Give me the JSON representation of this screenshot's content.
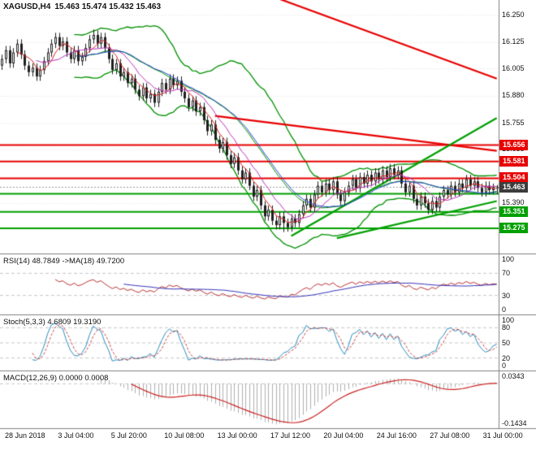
{
  "title": {
    "symbol": "XAGUSD,H4",
    "ohlc": "15.463 15.474 15.432 15.463"
  },
  "colors": {
    "background": "#ffffff",
    "bull": "#ffffff",
    "bear": "#1f1f1f",
    "outline": "#1f1f1f",
    "bollinger": "#009100",
    "ma_fast": "#dd2222",
    "ma_mid": "#bb33bb",
    "ma_slow": "#2244cc",
    "resistance": "#e80000",
    "support": "#00a000",
    "current_line": "#999999",
    "current_badge": "#3c3c3c",
    "rsi": "#bb3333",
    "rsi_ma": "#3333bb",
    "stoch_k": "#2b8fbf",
    "stoch_d": "#cc4444",
    "macd_hist": "#b0b0b0",
    "macd_signal": "#cc2222",
    "grid": "#e3e3e3",
    "frame": "#7f7f7f",
    "level_dash": "#c8c8c8",
    "text": "#111111"
  },
  "price_axis": {
    "ticks": [
      {
        "label": "16.250",
        "value": 16.25
      },
      {
        "label": "16.125",
        "value": 16.125
      },
      {
        "label": "16.005",
        "value": 16.005
      },
      {
        "label": "15.880",
        "value": 15.88
      },
      {
        "label": "15.755",
        "value": 15.755
      },
      {
        "label": "15.635",
        "value": 15.635
      },
      {
        "label": "15.390",
        "value": 15.39
      }
    ],
    "badges": [
      {
        "label": "15.656",
        "value": 15.656,
        "role": "resistance"
      },
      {
        "label": "15.581",
        "value": 15.581,
        "role": "resistance"
      },
      {
        "label": "15.504",
        "value": 15.504,
        "role": "resistance"
      },
      {
        "label": "15.463",
        "value": 15.463,
        "role": "current"
      },
      {
        "label": "15.351",
        "value": 15.351,
        "role": "support"
      },
      {
        "label": "15.275",
        "value": 15.275,
        "role": "support"
      }
    ]
  },
  "indicator_panels": {
    "rsi": {
      "title": "RSI(14) 48.7849 ->MA(18) 49.7200",
      "axis": [
        {
          "label": "100",
          "value": 100
        },
        {
          "label": "70",
          "value": 70
        },
        {
          "label": "30",
          "value": 30
        },
        {
          "label": "0",
          "value": 0
        }
      ],
      "levels": [
        70,
        30
      ]
    },
    "stoch": {
      "title": "Stoch(5,3,3) 4.6809 19.3190",
      "axis": [
        {
          "label": "100",
          "value": 100
        },
        {
          "label": "80",
          "value": 80
        },
        {
          "label": "50",
          "value": 50
        },
        {
          "label": "20",
          "value": 20
        },
        {
          "label": "0",
          "value": 0
        }
      ],
      "levels": [
        80,
        50,
        20
      ]
    },
    "macd": {
      "title": "MACD(12,26,9) 0.0000 0.0008",
      "axis": [
        {
          "label": "0.0343",
          "value": 0.0343
        },
        {
          "label": "-0.1434",
          "value": -0.1434
        }
      ],
      "range": [
        -0.1434,
        0.0343
      ]
    }
  },
  "time_axis": {
    "labels": [
      "28 Jun 2018",
      "3 Jul 04:00",
      "5 Jul 20:00",
      "10 Jul 08:00",
      "13 Jul 00:00",
      "17 Jul 12:00",
      "20 Jul 04:00",
      "24 Jul 16:00",
      "27 Jul 08:00",
      "31 Jul 00:00"
    ]
  },
  "chart_data": {
    "type": "candlestick",
    "symbol": "XAGUSD",
    "timeframe": "H4",
    "title": "XAGUSD,H4 15.463 15.474 15.432 15.463",
    "ylim": [
      15.16,
      16.32
    ],
    "x_labels": [
      "28 Jun 2018",
      "3 Jul 04:00",
      "5 Jul 20:00",
      "10 Jul 08:00",
      "13 Jul 00:00",
      "17 Jul 12:00",
      "20 Jul 04:00",
      "24 Jul 16:00",
      "27 Jul 08:00",
      "31 Jul 00:00"
    ],
    "candles": [
      [
        16.02,
        16.07,
        16.0,
        16.05
      ],
      [
        16.05,
        16.11,
        16.03,
        16.09
      ],
      [
        16.09,
        16.11,
        16.01,
        16.03
      ],
      [
        16.03,
        16.1,
        16.01,
        16.08
      ],
      [
        16.08,
        16.14,
        16.06,
        16.12
      ],
      [
        16.12,
        16.14,
        16.05,
        16.07
      ],
      [
        16.07,
        16.09,
        16.0,
        16.02
      ],
      [
        16.02,
        16.04,
        15.97,
        15.99
      ],
      [
        15.99,
        16.03,
        15.97,
        16.01
      ],
      [
        16.01,
        16.03,
        15.95,
        15.97
      ],
      [
        15.97,
        16.02,
        15.95,
        16.0
      ],
      [
        16.0,
        16.06,
        15.98,
        16.04
      ],
      [
        16.04,
        16.1,
        16.02,
        16.08
      ],
      [
        16.08,
        16.14,
        16.06,
        16.12
      ],
      [
        16.12,
        16.17,
        16.1,
        16.15
      ],
      [
        16.15,
        16.17,
        16.09,
        16.11
      ],
      [
        16.11,
        16.15,
        16.09,
        16.13
      ],
      [
        16.13,
        16.15,
        16.06,
        16.08
      ],
      [
        16.08,
        16.1,
        16.03,
        16.05
      ],
      [
        16.05,
        16.11,
        16.03,
        16.09
      ],
      [
        16.09,
        16.11,
        16.02,
        16.04
      ],
      [
        16.04,
        16.08,
        16.02,
        16.06
      ],
      [
        16.06,
        16.12,
        16.04,
        16.1
      ],
      [
        16.1,
        16.16,
        16.08,
        16.14
      ],
      [
        16.14,
        16.185,
        16.12,
        16.16
      ],
      [
        16.16,
        16.18,
        16.1,
        16.12
      ],
      [
        16.12,
        16.17,
        16.1,
        16.15
      ],
      [
        16.15,
        16.17,
        16.08,
        16.1
      ],
      [
        16.1,
        16.12,
        16.03,
        16.05
      ],
      [
        16.05,
        16.07,
        15.98,
        16.0
      ],
      [
        16.0,
        16.05,
        15.98,
        16.03
      ],
      [
        16.03,
        16.05,
        15.95,
        15.97
      ],
      [
        15.97,
        16.01,
        15.95,
        15.99
      ],
      [
        15.99,
        16.01,
        15.92,
        15.94
      ],
      [
        15.94,
        15.98,
        15.92,
        15.96
      ],
      [
        15.96,
        15.98,
        15.89,
        15.91
      ],
      [
        15.91,
        15.93,
        15.86,
        15.88
      ],
      [
        15.88,
        15.94,
        15.86,
        15.92
      ],
      [
        15.92,
        15.94,
        15.85,
        15.87
      ],
      [
        15.87,
        15.91,
        15.85,
        15.89
      ],
      [
        15.89,
        15.91,
        15.83,
        15.85
      ],
      [
        15.85,
        15.92,
        15.83,
        15.9
      ],
      [
        15.9,
        15.96,
        15.88,
        15.94
      ],
      [
        15.94,
        15.96,
        15.89,
        15.91
      ],
      [
        15.91,
        15.98,
        15.89,
        15.96
      ],
      [
        15.96,
        15.98,
        15.91,
        15.93
      ],
      [
        15.93,
        15.97,
        15.91,
        15.95
      ],
      [
        15.95,
        15.97,
        15.88,
        15.9
      ],
      [
        15.9,
        15.92,
        15.85,
        15.87
      ],
      [
        15.87,
        15.89,
        15.81,
        15.83
      ],
      [
        15.83,
        15.88,
        15.81,
        15.86
      ],
      [
        15.86,
        15.88,
        15.79,
        15.81
      ],
      [
        15.81,
        15.85,
        15.79,
        15.83
      ],
      [
        15.83,
        15.85,
        15.75,
        15.77
      ],
      [
        15.77,
        15.79,
        15.7,
        15.72
      ],
      [
        15.72,
        15.77,
        15.7,
        15.75
      ],
      [
        15.75,
        15.77,
        15.66,
        15.68
      ],
      [
        15.68,
        15.7,
        15.62,
        15.64
      ],
      [
        15.64,
        15.69,
        15.62,
        15.67
      ],
      [
        15.67,
        15.69,
        15.59,
        15.61
      ],
      [
        15.61,
        15.63,
        15.55,
        15.57
      ],
      [
        15.57,
        15.62,
        15.55,
        15.6
      ],
      [
        15.6,
        15.62,
        15.52,
        15.54
      ],
      [
        15.54,
        15.56,
        15.48,
        15.5
      ],
      [
        15.5,
        15.55,
        15.48,
        15.53
      ],
      [
        15.53,
        15.55,
        15.45,
        15.47
      ],
      [
        15.47,
        15.49,
        15.4,
        15.42
      ],
      [
        15.42,
        15.47,
        15.4,
        15.45
      ],
      [
        15.45,
        15.47,
        15.36,
        15.38
      ],
      [
        15.38,
        15.4,
        15.31,
        15.33
      ],
      [
        15.33,
        15.38,
        15.31,
        15.36
      ],
      [
        15.36,
        15.38,
        15.29,
        15.31
      ],
      [
        15.31,
        15.33,
        15.27,
        15.29
      ],
      [
        15.29,
        15.35,
        15.27,
        15.33
      ],
      [
        15.33,
        15.35,
        15.258,
        15.3
      ],
      [
        15.3,
        15.32,
        15.26,
        15.28
      ],
      [
        15.28,
        15.34,
        15.26,
        15.32
      ],
      [
        15.32,
        15.34,
        15.28,
        15.3
      ],
      [
        15.3,
        15.36,
        15.28,
        15.34
      ],
      [
        15.34,
        15.4,
        15.32,
        15.38
      ],
      [
        15.38,
        15.43,
        15.36,
        15.41
      ],
      [
        15.41,
        15.43,
        15.35,
        15.37
      ],
      [
        15.37,
        15.45,
        15.35,
        15.43
      ],
      [
        15.43,
        15.49,
        15.41,
        15.47
      ],
      [
        15.47,
        15.49,
        15.42,
        15.44
      ],
      [
        15.44,
        15.5,
        15.42,
        15.48
      ],
      [
        15.48,
        15.5,
        15.43,
        15.45
      ],
      [
        15.45,
        15.51,
        15.43,
        15.49
      ],
      [
        15.49,
        15.51,
        15.41,
        15.43
      ],
      [
        15.43,
        15.45,
        15.38,
        15.4
      ],
      [
        15.4,
        15.46,
        15.38,
        15.44
      ],
      [
        15.44,
        15.49,
        15.42,
        15.47
      ],
      [
        15.47,
        15.52,
        15.45,
        15.5
      ],
      [
        15.5,
        15.52,
        15.44,
        15.46
      ],
      [
        15.46,
        15.53,
        15.44,
        15.51
      ],
      [
        15.51,
        15.53,
        15.46,
        15.48
      ],
      [
        15.48,
        15.54,
        15.46,
        15.52
      ],
      [
        15.52,
        15.54,
        15.47,
        15.49
      ],
      [
        15.49,
        15.55,
        15.47,
        15.53
      ],
      [
        15.53,
        15.55,
        15.48,
        15.5
      ],
      [
        15.5,
        15.56,
        15.48,
        15.54
      ],
      [
        15.54,
        15.56,
        15.49,
        15.51
      ],
      [
        15.51,
        15.57,
        15.49,
        15.55
      ],
      [
        15.55,
        15.57,
        15.5,
        15.52
      ],
      [
        15.52,
        15.56,
        15.5,
        15.54
      ],
      [
        15.54,
        15.56,
        15.46,
        15.48
      ],
      [
        15.48,
        15.5,
        15.42,
        15.44
      ],
      [
        15.44,
        15.49,
        15.42,
        15.47
      ],
      [
        15.47,
        15.49,
        15.39,
        15.41
      ],
      [
        15.41,
        15.43,
        15.36,
        15.38
      ],
      [
        15.38,
        15.44,
        15.36,
        15.42
      ],
      [
        15.42,
        15.44,
        15.37,
        15.39
      ],
      [
        15.39,
        15.41,
        15.34,
        15.36
      ],
      [
        15.36,
        15.42,
        15.34,
        15.4
      ],
      [
        15.4,
        15.42,
        15.35,
        15.37
      ],
      [
        15.37,
        15.44,
        15.35,
        15.42
      ],
      [
        15.42,
        15.47,
        15.4,
        15.45
      ],
      [
        15.45,
        15.47,
        15.41,
        15.43
      ],
      [
        15.43,
        15.49,
        15.41,
        15.47
      ],
      [
        15.47,
        15.49,
        15.42,
        15.44
      ],
      [
        15.44,
        15.5,
        15.42,
        15.48
      ],
      [
        15.48,
        15.5,
        15.44,
        15.46
      ],
      [
        15.46,
        15.52,
        15.44,
        15.5
      ],
      [
        15.5,
        15.52,
        15.45,
        15.47
      ],
      [
        15.47,
        15.51,
        15.45,
        15.49
      ],
      [
        15.49,
        15.51,
        15.44,
        15.46
      ],
      [
        15.46,
        15.48,
        15.42,
        15.44
      ],
      [
        15.44,
        15.49,
        15.42,
        15.47
      ],
      [
        15.47,
        15.49,
        15.43,
        15.45
      ],
      [
        15.45,
        15.48,
        15.43,
        15.463
      ],
      [
        15.463,
        15.474,
        15.432,
        15.463
      ]
    ],
    "overlays": {
      "bollinger": {
        "period": 20,
        "deviation": 2
      },
      "sma_periods": [
        5,
        10,
        21
      ]
    },
    "levels": {
      "resistance": [
        15.656,
        15.581,
        15.504
      ],
      "support": [
        15.433,
        15.351,
        15.275
      ],
      "current": 15.463
    },
    "trendlines": [
      {
        "color": "resistance",
        "from": {
          "i": 58,
          "p": 16.42
        },
        "to": {
          "i": 130,
          "p": 15.96
        }
      },
      {
        "color": "resistance",
        "from": {
          "i": 56,
          "p": 15.79
        },
        "to": {
          "i": 130,
          "p": 15.63
        }
      },
      {
        "color": "support",
        "from": {
          "i": 76,
          "p": 15.24
        },
        "to": {
          "i": 130,
          "p": 15.78
        }
      },
      {
        "color": "support",
        "from": {
          "i": 88,
          "p": 15.23
        },
        "to": {
          "i": 130,
          "p": 15.4
        }
      }
    ],
    "indicators": {
      "rsi": {
        "period": 14,
        "ma_period": 18,
        "last": 48.7849,
        "ma_last": 49.72
      },
      "stochastic": {
        "k": 5,
        "d": 3,
        "slowing": 3,
        "last": 4.6809,
        "signal_last": 19.319
      },
      "macd": {
        "fast": 12,
        "slow": 26,
        "signal": 9,
        "last": 0.0,
        "signal_last": 0.0008
      }
    }
  }
}
